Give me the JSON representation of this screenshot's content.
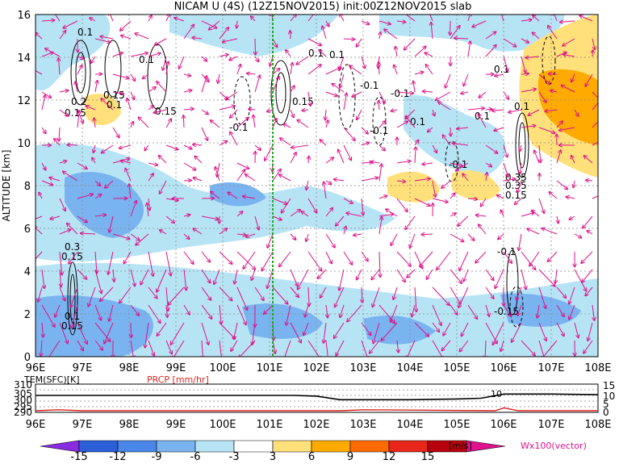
{
  "title": "NICAM U (4S) (12Z15NOV2015) init:00Z12NOV2015 slab",
  "main_panel": {
    "ylabel": "ALTITUDE [km]",
    "x_ticks": [
      "96E",
      "97E",
      "98E",
      "99E",
      "100E",
      "101E",
      "102E",
      "103E",
      "104E",
      "105E",
      "106E",
      "107E",
      "108E"
    ],
    "y_ticks": [
      "0",
      "2",
      "4",
      "6",
      "8",
      "10",
      "12",
      "14",
      "16"
    ]
  },
  "sub_panel": {
    "left_label": "TEM(SFC)[K]",
    "right_label": "PRCP [mm/hr]",
    "left_ticks": [
      "290",
      "295",
      "300",
      "305",
      "310"
    ],
    "right_ticks": [
      "0",
      "5",
      "10",
      "15"
    ],
    "annotation": "10",
    "x_ticks": [
      "96E",
      "97E",
      "98E",
      "99E",
      "100E",
      "101E",
      "102E",
      "103E",
      "104E",
      "105E",
      "106E",
      "107E",
      "108E"
    ]
  },
  "colorbar": {
    "ticks": [
      "-15",
      "-12",
      "-9",
      "-6",
      "-3",
      "3",
      "6",
      "9",
      "12",
      "15"
    ],
    "unit": "[m/s]",
    "colors": [
      "#8a2be2",
      "#2a5fd8",
      "#4a86e8",
      "#7ab4f0",
      "#b7e4f5",
      "#ffffff",
      "#ffe07a",
      "#ffaa00",
      "#ff6a00",
      "#e8261a",
      "#b8000e",
      "#e0128e"
    ]
  },
  "vector_label": "Wx100(vector)",
  "contour_labels": [
    "0.1",
    "0.1",
    "0.2",
    "0.15",
    "0.15",
    "0.1",
    "0.15",
    "0.1",
    "0.15",
    "-0.1",
    "0.1",
    "-0.1",
    "-0.1",
    "0.1",
    "0.1",
    "-0.1",
    "-0.1",
    "0.1",
    "0.1",
    "0.15",
    "0.35",
    "0.3",
    "0.15",
    "0.1",
    "0.15",
    "0.35",
    "-0.1",
    "-0.15"
  ],
  "colors": {
    "accent_vector": "#dd1188",
    "marker_line": "#22aa22",
    "temp_line": "#000000",
    "prcp_line": "#dd2222"
  },
  "chart_data": {
    "type": "heatmap",
    "title": "NICAM U (4S) (12Z15NOV2015) init:00Z12NOV2015 slab",
    "ylabel": "ALTITUDE [km]",
    "xlim": [
      96,
      108
    ],
    "ylim": [
      0,
      16
    ],
    "highlight_longitude": 101,
    "surface_temperature": {
      "label": "TEM(SFC)[K]",
      "x": [
        96,
        98,
        100,
        101.5,
        102,
        102.5,
        104,
        105,
        105.5,
        106,
        107,
        108
      ],
      "values": [
        302,
        302,
        302,
        302,
        301.5,
        299,
        299,
        299.5,
        300,
        303,
        303,
        302.5
      ]
    },
    "precipitation": {
      "label": "PRCP [mm/hr]",
      "x": [
        96,
        96.5,
        97,
        102.5,
        103,
        105.8,
        106,
        106.3,
        108
      ],
      "values": [
        0,
        0.5,
        0,
        0,
        0.5,
        0,
        1.5,
        0,
        0
      ]
    }
  }
}
